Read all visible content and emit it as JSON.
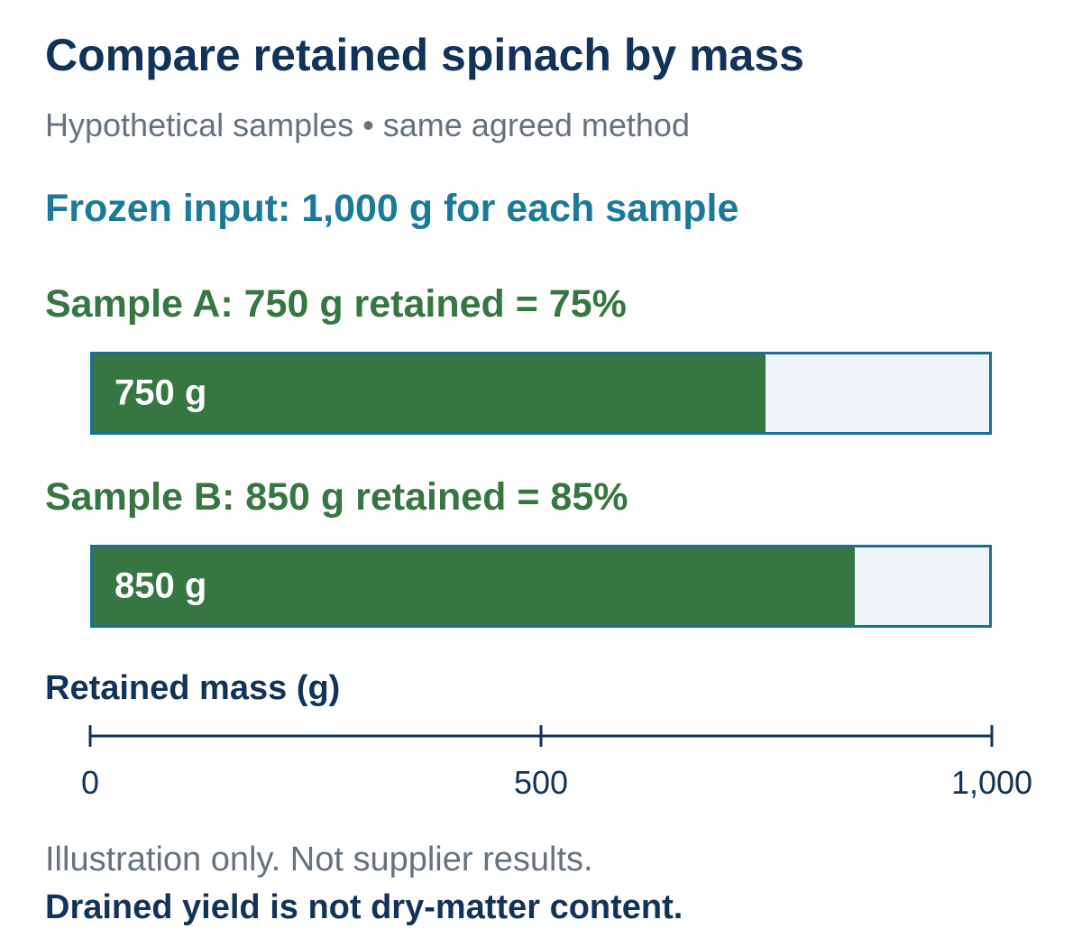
{
  "chart_data": {
    "type": "bar",
    "orientation": "horizontal",
    "title": "Compare retained spinach by mass",
    "subtitle": "Hypothetical samples • same agreed method",
    "annotation_input": "Frozen input: 1,000 g for each sample",
    "xlabel": "Retained mass (g)",
    "xlim": [
      0,
      1000
    ],
    "ticks": [
      {
        "value": 0,
        "label": "0"
      },
      {
        "value": 500,
        "label": "500"
      },
      {
        "value": 1000,
        "label": "1,000"
      }
    ],
    "bars": [
      {
        "label": "Sample A: 750 g retained = 75%",
        "value": 750,
        "value_label": "750 g"
      },
      {
        "label": "Sample B: 850 g retained = 85%",
        "value": 850,
        "value_label": "850 g"
      }
    ],
    "colors": {
      "fill": "#367640",
      "track": "#eef4f7",
      "track_border": "#1b7090",
      "axis": "#11335a"
    },
    "notes": [
      "Illustration only. Not supplier results."
    ],
    "note_bold": "Drained yield is not dry-matter content."
  }
}
